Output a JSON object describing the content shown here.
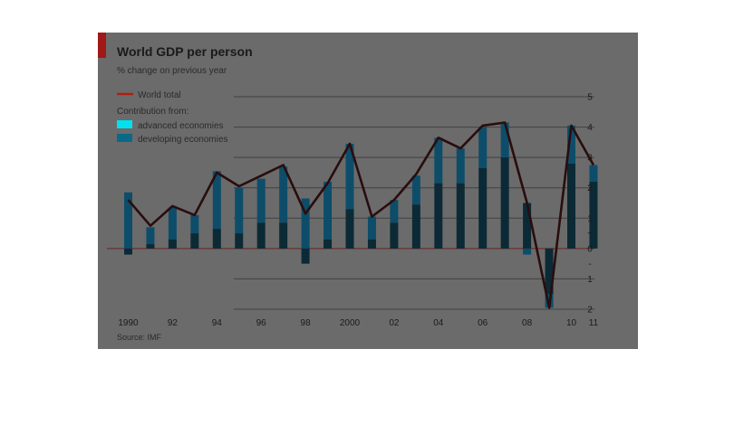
{
  "chart_data": {
    "type": "bar",
    "title": "World GDP per person",
    "subtitle": "% change on previous year",
    "source": "Source: IMF",
    "legend": {
      "line_label": "World total",
      "heading": "Contribution from:",
      "entries": [
        "advanced economies",
        "developing economies"
      ]
    },
    "x_tick_labels": [
      "1990",
      "92",
      "94",
      "96",
      "98",
      "2000",
      "02",
      "04",
      "06",
      "08",
      "10",
      "11"
    ],
    "y_tick_labels": [
      "5",
      "4",
      "3",
      "2",
      "1",
      "+",
      "0",
      "-",
      "1",
      "2"
    ],
    "ylim": [
      -2,
      5
    ],
    "years": [
      1990,
      1991,
      1992,
      1993,
      1994,
      1995,
      1996,
      1997,
      1998,
      1999,
      2000,
      2001,
      2002,
      2003,
      2004,
      2005,
      2006,
      2007,
      2008,
      2009,
      2010,
      2011
    ],
    "series": [
      {
        "name": "developing economies",
        "kind": "bar-bottom",
        "values": [
          -0.2,
          0.15,
          0.3,
          0.5,
          0.65,
          0.5,
          0.85,
          0.85,
          -0.5,
          0.3,
          1.3,
          0.3,
          0.85,
          1.45,
          2.15,
          2.15,
          2.65,
          3.0,
          1.5,
          -1.5,
          2.8,
          2.2
        ]
      },
      {
        "name": "advanced economies",
        "kind": "bar-top",
        "values": [
          1.85,
          0.55,
          1.05,
          0.6,
          1.9,
          1.5,
          1.45,
          1.85,
          1.65,
          1.9,
          2.15,
          0.75,
          0.75,
          0.95,
          1.5,
          1.15,
          1.35,
          1.15,
          -0.2,
          -0.45,
          1.25,
          0.55
        ]
      },
      {
        "name": "World total",
        "kind": "line",
        "values": [
          1.6,
          0.75,
          1.4,
          1.1,
          2.5,
          2.05,
          2.4,
          2.75,
          1.15,
          2.15,
          3.45,
          1.05,
          1.6,
          2.45,
          3.65,
          3.3,
          4.05,
          4.15,
          1.5,
          -1.95,
          4.05,
          2.75
        ]
      }
    ],
    "colors": {
      "panel": "#6b6b6b",
      "advanced": "#0d4d6a",
      "developing": "#0b2a36",
      "line": "#2a0d0d",
      "zero_line": "#6a3030",
      "grid": "#404040"
    }
  }
}
